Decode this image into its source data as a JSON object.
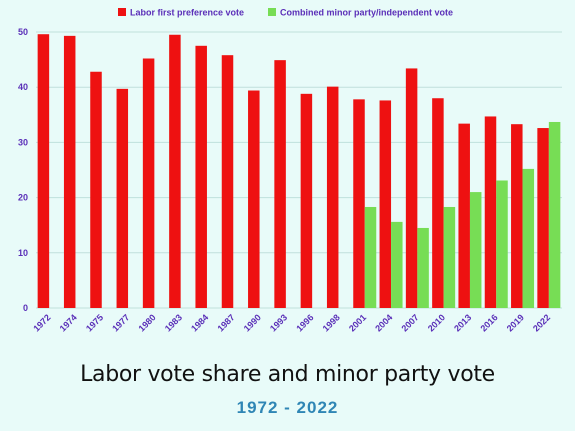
{
  "chart_data": {
    "type": "bar",
    "title": "Labor vote share and minor party vote",
    "subtitle": "1972 - 2022",
    "xlabel": "",
    "ylabel": "",
    "ylim": [
      0,
      50
    ],
    "yticks": [
      0,
      10,
      20,
      30,
      40,
      50
    ],
    "grid": true,
    "legend_position": "top",
    "categories": [
      "1972",
      "1974",
      "1975",
      "1977",
      "1980",
      "1983",
      "1984",
      "1987",
      "1990",
      "1993",
      "1996",
      "1998",
      "2001",
      "2004",
      "2007",
      "2010",
      "2013",
      "2016",
      "2019",
      "2022"
    ],
    "series": [
      {
        "name": "Labor first preference vote",
        "color": "#ee1111",
        "values": [
          49.6,
          49.3,
          42.8,
          39.7,
          45.2,
          49.5,
          47.5,
          45.8,
          39.4,
          44.9,
          38.8,
          40.1,
          37.8,
          37.6,
          43.4,
          38.0,
          33.4,
          34.7,
          33.3,
          32.6
        ]
      },
      {
        "name": "Combined minor party/independent vote",
        "color": "#77dd55",
        "values": [
          null,
          null,
          null,
          null,
          null,
          null,
          null,
          null,
          null,
          null,
          null,
          null,
          18.3,
          15.6,
          14.5,
          18.3,
          21.0,
          23.1,
          25.2,
          33.7
        ]
      }
    ]
  }
}
